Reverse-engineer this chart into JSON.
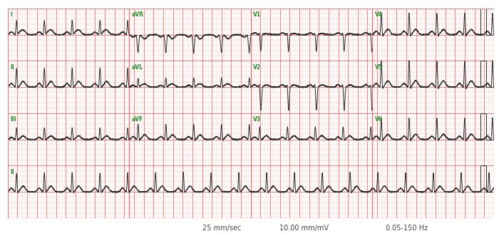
{
  "grid_minor_color": "#f2b8b8",
  "grid_major_color": "#e07070",
  "ecg_color": "#2a2a2a",
  "label_color": "#2a8a2a",
  "outer_bg": "#ffffff",
  "paper_bg": "#fff0f0",
  "text_color": "#444444",
  "bottom_text": [
    "25 mm/sec",
    "10.00 mm/mV",
    "0.05-150 Hz"
  ],
  "fig_width": 7.07,
  "fig_height": 3.38,
  "dpi": 100
}
